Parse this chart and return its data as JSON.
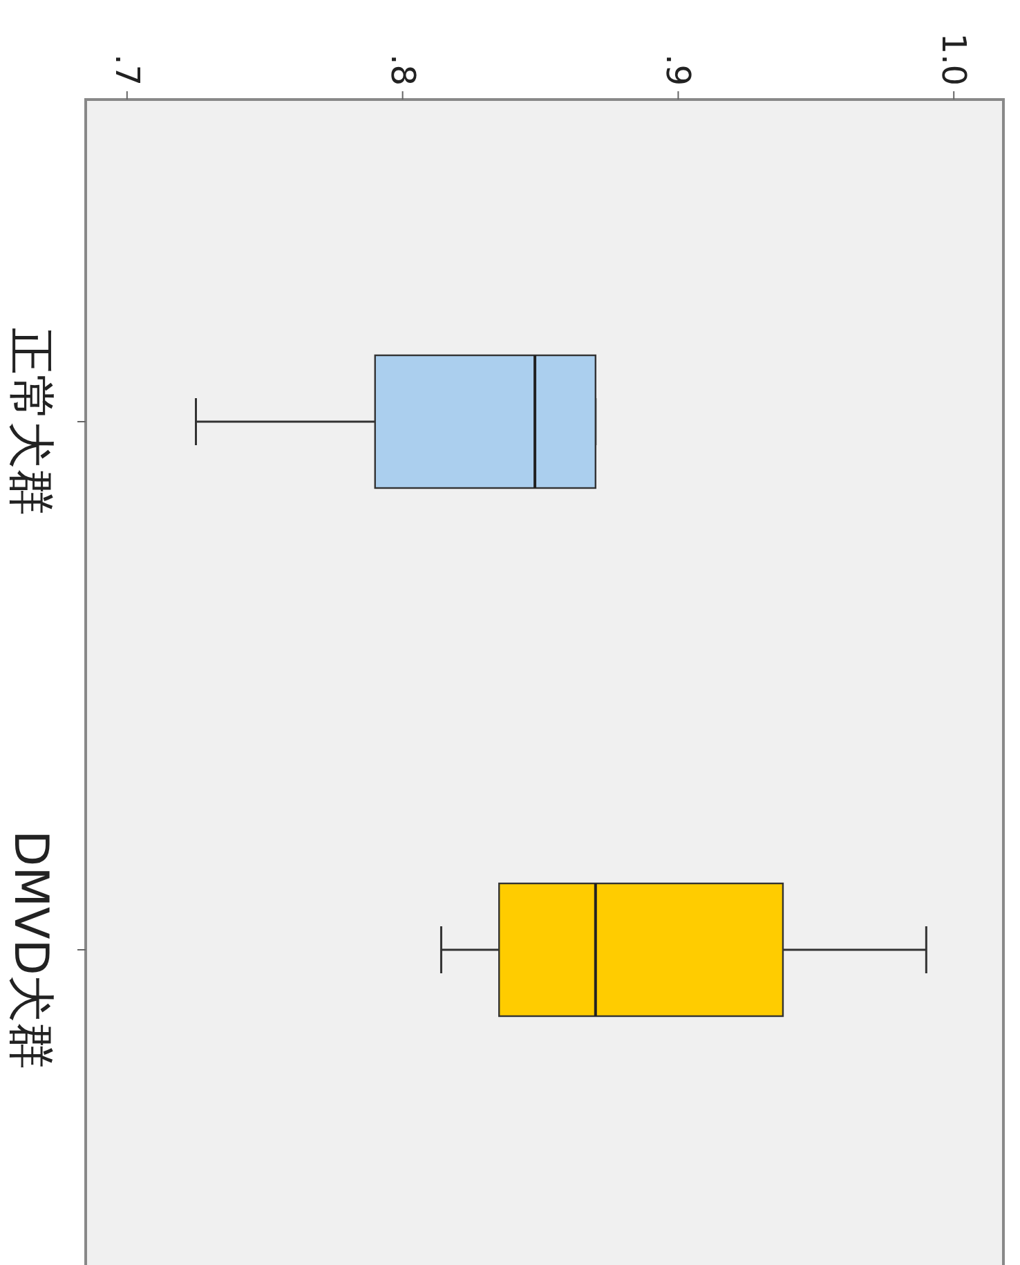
{
  "chart_data": {
    "type": "box",
    "orientation": "horizontal",
    "categories": [
      "正常犬群",
      "DMVD犬群"
    ],
    "boxes": [
      {
        "low": 0.725,
        "q1": 0.79,
        "median": 0.848,
        "q3": 0.87,
        "high": 0.87
      },
      {
        "low": 0.814,
        "q1": 0.835,
        "median": 0.87,
        "q3": 0.938,
        "high": 0.99
      }
    ],
    "colors": [
      "#abcfee",
      "#ffcc00"
    ],
    "xlim": [
      0.685,
      1.018
    ],
    "xticks": [
      {
        "value": 0.7,
        "label": ".7"
      },
      {
        "value": 0.8,
        "label": ".8"
      },
      {
        "value": 0.9,
        "label": ".9"
      },
      {
        "value": 1.0,
        "label": "1.0"
      }
    ]
  }
}
